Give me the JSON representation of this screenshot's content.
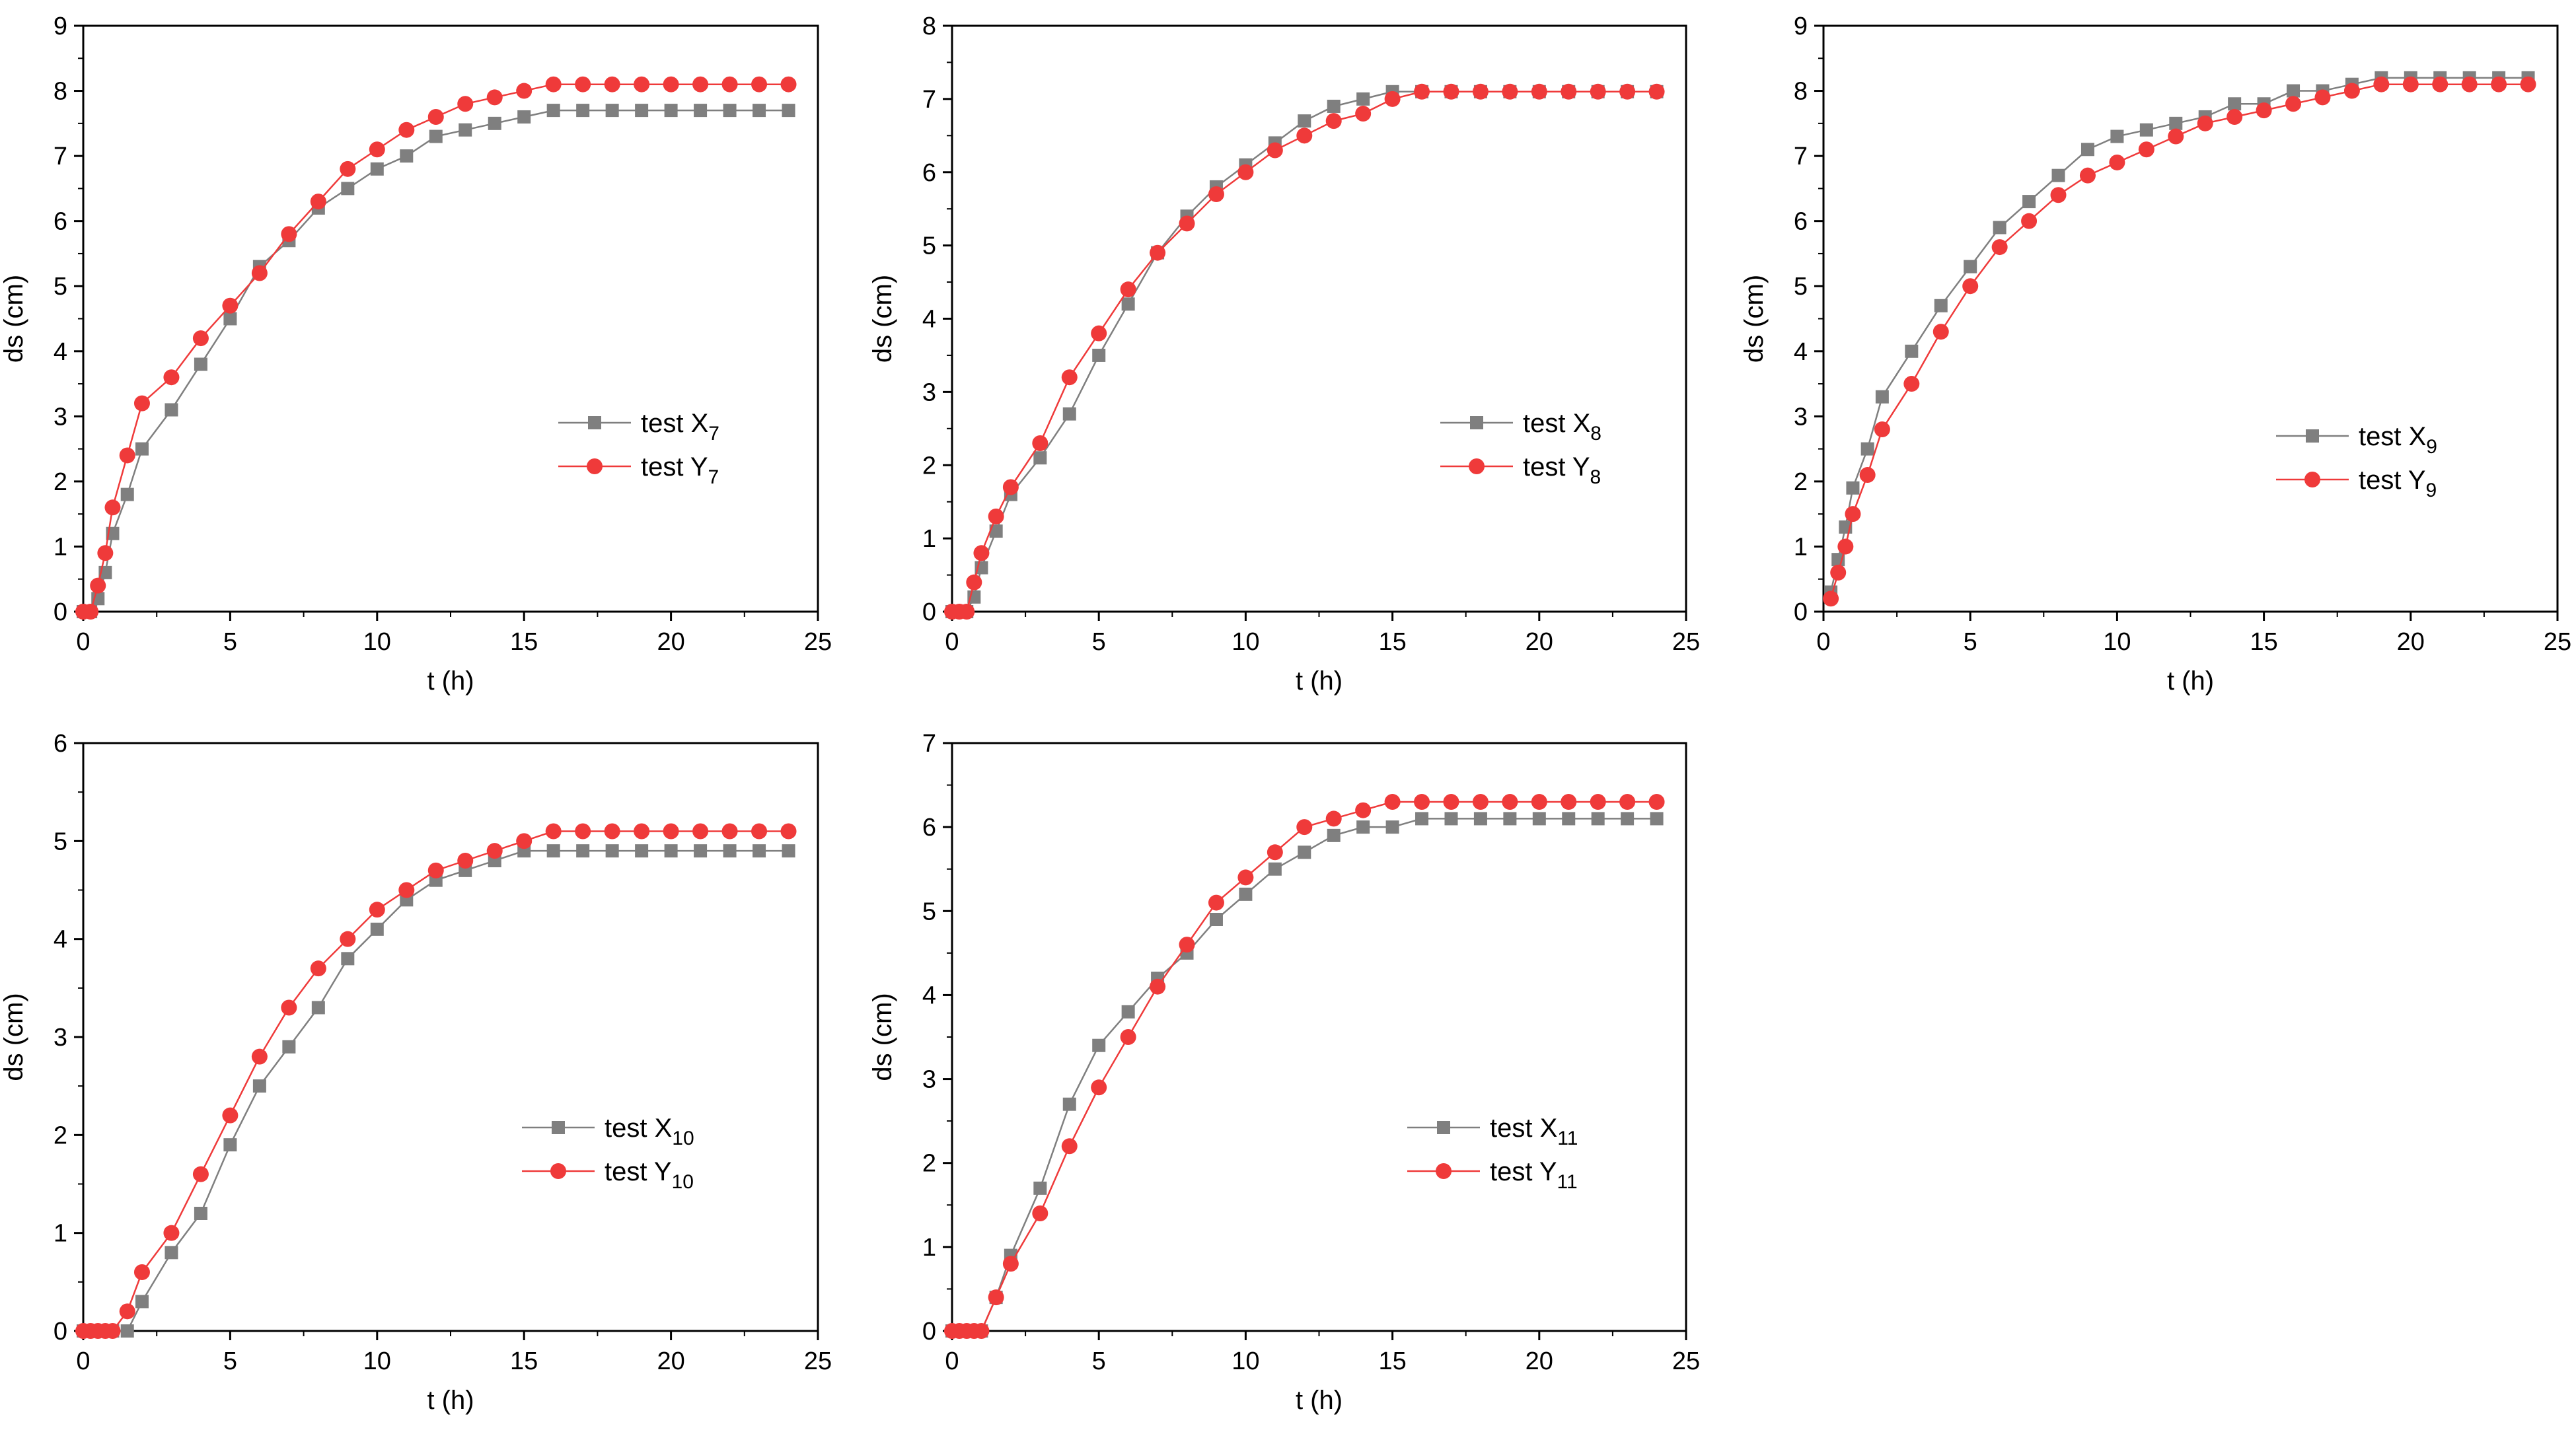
{
  "chart_data": [
    {
      "type": "line",
      "title": "",
      "xlabel": "t (h)",
      "ylabel": "ds (cm)",
      "xlim": [
        0,
        25
      ],
      "ylim": [
        0,
        9
      ],
      "xticks": [
        "0",
        "5",
        "10",
        "15",
        "20",
        "25"
      ],
      "yticks": [
        "0",
        "1",
        "2",
        "3",
        "4",
        "5",
        "6",
        "7",
        "8",
        "9"
      ],
      "legend_position": "center-right",
      "series": [
        {
          "name": "test X",
          "subscript": "7",
          "color": "#7f7f7f",
          "marker": "square",
          "x": [
            0,
            0.25,
            0.5,
            0.75,
            1,
            1.5,
            2,
            3,
            4,
            5,
            6,
            7,
            8,
            9,
            10,
            11,
            12,
            13,
            14,
            15,
            16,
            17,
            18,
            19,
            20,
            21,
            22,
            23,
            24
          ],
          "y": [
            0,
            0,
            0.2,
            0.6,
            1.2,
            1.8,
            2.5,
            3.1,
            3.8,
            4.5,
            5.3,
            5.7,
            6.2,
            6.5,
            6.8,
            7.0,
            7.3,
            7.4,
            7.5,
            7.6,
            7.7,
            7.7,
            7.7,
            7.7,
            7.7,
            7.7,
            7.7,
            7.7,
            7.7
          ]
        },
        {
          "name": "test Y",
          "subscript": "7",
          "color": "#ef3a3a",
          "marker": "circle",
          "x": [
            0,
            0.25,
            0.5,
            0.75,
            1,
            1.5,
            2,
            3,
            4,
            5,
            6,
            7,
            8,
            9,
            10,
            11,
            12,
            13,
            14,
            15,
            16,
            17,
            18,
            19,
            20,
            21,
            22,
            23,
            24
          ],
          "y": [
            0,
            0,
            0.4,
            0.9,
            1.6,
            2.4,
            3.2,
            3.6,
            4.2,
            4.7,
            5.2,
            5.8,
            6.3,
            6.8,
            7.1,
            7.4,
            7.6,
            7.8,
            7.9,
            8.0,
            8.1,
            8.1,
            8.1,
            8.1,
            8.1,
            8.1,
            8.1,
            8.1,
            8.1
          ]
        }
      ]
    },
    {
      "type": "line",
      "title": "",
      "xlabel": "t (h)",
      "ylabel": "ds (cm)",
      "xlim": [
        0,
        25
      ],
      "ylim": [
        0,
        8
      ],
      "xticks": [
        "0",
        "5",
        "10",
        "15",
        "20",
        "25"
      ],
      "yticks": [
        "0",
        "1",
        "2",
        "3",
        "4",
        "5",
        "6",
        "7",
        "8"
      ],
      "legend_position": "center-right",
      "series": [
        {
          "name": "test X",
          "subscript": "8",
          "color": "#7f7f7f",
          "marker": "square",
          "x": [
            0,
            0.25,
            0.5,
            0.75,
            1,
            1.5,
            2,
            3,
            4,
            5,
            6,
            7,
            8,
            9,
            10,
            11,
            12,
            13,
            14,
            15,
            16,
            17,
            18,
            19,
            20,
            21,
            22,
            23,
            24
          ],
          "y": [
            0,
            0,
            0,
            0.2,
            0.6,
            1.1,
            1.6,
            2.1,
            2.7,
            3.5,
            4.2,
            4.9,
            5.4,
            5.8,
            6.1,
            6.4,
            6.7,
            6.9,
            7.0,
            7.1,
            7.1,
            7.1,
            7.1,
            7.1,
            7.1,
            7.1,
            7.1,
            7.1,
            7.1
          ]
        },
        {
          "name": "test Y",
          "subscript": "8",
          "color": "#ef3a3a",
          "marker": "circle",
          "x": [
            0,
            0.25,
            0.5,
            0.75,
            1,
            1.5,
            2,
            3,
            4,
            5,
            6,
            7,
            8,
            9,
            10,
            11,
            12,
            13,
            14,
            15,
            16,
            17,
            18,
            19,
            20,
            21,
            22,
            23,
            24
          ],
          "y": [
            0,
            0,
            0,
            0.4,
            0.8,
            1.3,
            1.7,
            2.3,
            3.2,
            3.8,
            4.4,
            4.9,
            5.3,
            5.7,
            6.0,
            6.3,
            6.5,
            6.7,
            6.8,
            7.0,
            7.1,
            7.1,
            7.1,
            7.1,
            7.1,
            7.1,
            7.1,
            7.1,
            7.1
          ]
        }
      ]
    },
    {
      "type": "line",
      "title": "",
      "xlabel": "t (h)",
      "ylabel": "ds (cm)",
      "xlim": [
        0,
        25
      ],
      "ylim": [
        0,
        9
      ],
      "xticks": [
        "0",
        "5",
        "10",
        "15",
        "20",
        "25"
      ],
      "yticks": [
        "0",
        "1",
        "2",
        "3",
        "4",
        "5",
        "6",
        "7",
        "8",
        "9"
      ],
      "legend_position": "center-right",
      "series": [
        {
          "name": "test X",
          "subscript": "9",
          "color": "#7f7f7f",
          "marker": "square",
          "x": [
            0.25,
            0.5,
            0.75,
            1,
            1.5,
            2,
            3,
            4,
            5,
            6,
            7,
            8,
            9,
            10,
            11,
            12,
            13,
            14,
            15,
            16,
            17,
            18,
            19,
            20,
            21,
            22,
            23,
            24
          ],
          "y": [
            0.3,
            0.8,
            1.3,
            1.9,
            2.5,
            3.3,
            4.0,
            4.7,
            5.3,
            5.9,
            6.3,
            6.7,
            7.1,
            7.3,
            7.4,
            7.5,
            7.6,
            7.8,
            7.8,
            8.0,
            8.0,
            8.1,
            8.2,
            8.2,
            8.2,
            8.2,
            8.2,
            8.2
          ]
        },
        {
          "name": "test Y",
          "subscript": "9",
          "color": "#ef3a3a",
          "marker": "circle",
          "x": [
            0.25,
            0.5,
            0.75,
            1,
            1.5,
            2,
            3,
            4,
            5,
            6,
            7,
            8,
            9,
            10,
            11,
            12,
            13,
            14,
            15,
            16,
            17,
            18,
            19,
            20,
            21,
            22,
            23,
            24
          ],
          "y": [
            0.2,
            0.6,
            1.0,
            1.5,
            2.1,
            2.8,
            3.5,
            4.3,
            5.0,
            5.6,
            6.0,
            6.4,
            6.7,
            6.9,
            7.1,
            7.3,
            7.5,
            7.6,
            7.7,
            7.8,
            7.9,
            8.0,
            8.1,
            8.1,
            8.1,
            8.1,
            8.1,
            8.1
          ]
        }
      ]
    },
    {
      "type": "line",
      "title": "",
      "xlabel": "t (h)",
      "ylabel": "ds (cm)",
      "xlim": [
        0,
        25
      ],
      "ylim": [
        0,
        6
      ],
      "xticks": [
        "0",
        "5",
        "10",
        "15",
        "20",
        "25"
      ],
      "yticks": [
        "0",
        "1",
        "2",
        "3",
        "4",
        "5",
        "6"
      ],
      "legend_position": "center-right",
      "series": [
        {
          "name": "test X",
          "subscript": "10",
          "color": "#7f7f7f",
          "marker": "square",
          "x": [
            0,
            0.25,
            0.5,
            0.75,
            1,
            1.5,
            2,
            3,
            4,
            5,
            6,
            7,
            8,
            9,
            10,
            11,
            12,
            13,
            14,
            15,
            16,
            17,
            18,
            19,
            20,
            21,
            22,
            23,
            24
          ],
          "y": [
            0,
            0,
            0,
            0,
            0,
            0,
            0.3,
            0.8,
            1.2,
            1.9,
            2.5,
            2.9,
            3.3,
            3.8,
            4.1,
            4.4,
            4.6,
            4.7,
            4.8,
            4.9,
            4.9,
            4.9,
            4.9,
            4.9,
            4.9,
            4.9,
            4.9,
            4.9,
            4.9
          ]
        },
        {
          "name": "test Y",
          "subscript": "10",
          "color": "#ef3a3a",
          "marker": "circle",
          "x": [
            0,
            0.25,
            0.5,
            0.75,
            1,
            1.5,
            2,
            3,
            4,
            5,
            6,
            7,
            8,
            9,
            10,
            11,
            12,
            13,
            14,
            15,
            16,
            17,
            18,
            19,
            20,
            21,
            22,
            23,
            24
          ],
          "y": [
            0,
            0,
            0,
            0,
            0,
            0.2,
            0.6,
            1.0,
            1.6,
            2.2,
            2.8,
            3.3,
            3.7,
            4.0,
            4.3,
            4.5,
            4.7,
            4.8,
            4.9,
            5.0,
            5.1,
            5.1,
            5.1,
            5.1,
            5.1,
            5.1,
            5.1,
            5.1,
            5.1
          ]
        }
      ]
    },
    {
      "type": "line",
      "title": "",
      "xlabel": "t (h)",
      "ylabel": "ds (cm)",
      "xlim": [
        0,
        25
      ],
      "ylim": [
        0,
        7
      ],
      "xticks": [
        "0",
        "5",
        "10",
        "15",
        "20",
        "25"
      ],
      "yticks": [
        "0",
        "1",
        "2",
        "3",
        "4",
        "5",
        "6",
        "7"
      ],
      "legend_position": "center-right",
      "series": [
        {
          "name": "test X",
          "subscript": "11",
          "color": "#7f7f7f",
          "marker": "square",
          "x": [
            0,
            0.25,
            0.5,
            0.75,
            1,
            1.5,
            2,
            3,
            4,
            5,
            6,
            7,
            8,
            9,
            10,
            11,
            12,
            13,
            14,
            15,
            16,
            17,
            18,
            19,
            20,
            21,
            22,
            23,
            24
          ],
          "y": [
            0,
            0,
            0,
            0,
            0,
            0.4,
            0.9,
            1.7,
            2.7,
            3.4,
            3.8,
            4.2,
            4.5,
            4.9,
            5.2,
            5.5,
            5.7,
            5.9,
            6.0,
            6.0,
            6.1,
            6.1,
            6.1,
            6.1,
            6.1,
            6.1,
            6.1,
            6.1,
            6.1
          ]
        },
        {
          "name": "test Y",
          "subscript": "11",
          "color": "#ef3a3a",
          "marker": "circle",
          "x": [
            0,
            0.25,
            0.5,
            0.75,
            1,
            1.5,
            2,
            3,
            4,
            5,
            6,
            7,
            8,
            9,
            10,
            11,
            12,
            13,
            14,
            15,
            16,
            17,
            18,
            19,
            20,
            21,
            22,
            23,
            24
          ],
          "y": [
            0,
            0,
            0,
            0,
            0,
            0.4,
            0.8,
            1.4,
            2.2,
            2.9,
            3.5,
            4.1,
            4.6,
            5.1,
            5.4,
            5.7,
            6.0,
            6.1,
            6.2,
            6.3,
            6.3,
            6.3,
            6.3,
            6.3,
            6.3,
            6.3,
            6.3,
            6.3,
            6.3
          ]
        }
      ]
    }
  ]
}
